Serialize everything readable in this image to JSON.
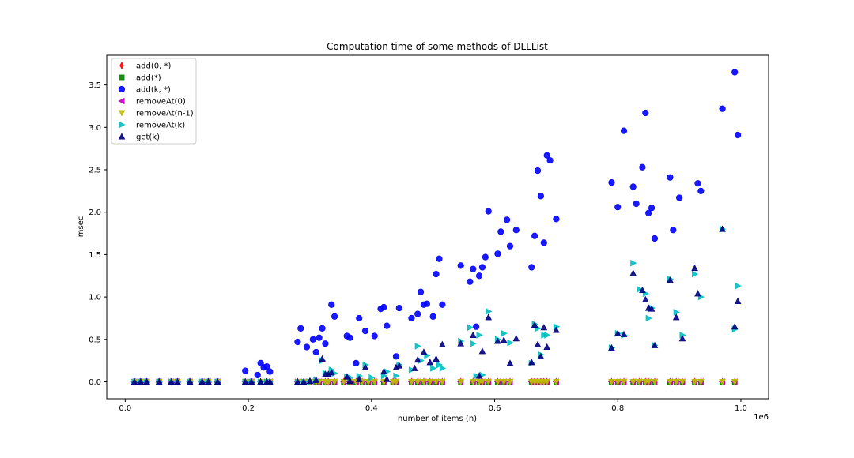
{
  "chart_data": {
    "type": "scatter",
    "title": "Computation time of some methods of DLLList",
    "xlabel": "number of items (n)",
    "ylabel": "msec",
    "x_multiplier_label": "1e6",
    "xlim": [
      -0.03,
      1.045
    ],
    "ylim": [
      -0.2,
      3.85
    ],
    "x_ticks": [
      0.0,
      0.2,
      0.4,
      0.6,
      0.8,
      1.0
    ],
    "x_tick_labels": [
      "0.0",
      "0.2",
      "0.4",
      "0.6",
      "0.8",
      "1.0"
    ],
    "y_ticks": [
      0.0,
      0.5,
      1.0,
      1.5,
      2.0,
      2.5,
      3.0,
      3.5
    ],
    "y_tick_labels": [
      "0.0",
      "0.5",
      "1.0",
      "1.5",
      "2.0",
      "2.5",
      "3.0",
      "3.5"
    ],
    "grid": false,
    "legend_position": "top-left",
    "series": [
      {
        "name": "add(0, *)",
        "marker": "diamond",
        "color": "#ff0000",
        "x": [
          0.015,
          0.025,
          0.035,
          0.055,
          0.075,
          0.085,
          0.105,
          0.125,
          0.135,
          0.15,
          0.195,
          0.205,
          0.22,
          0.23,
          0.235,
          0.28,
          0.29,
          0.3,
          0.31,
          0.315,
          0.325,
          0.33,
          0.34,
          0.355,
          0.365,
          0.375,
          0.385,
          0.395,
          0.405,
          0.42,
          0.435,
          0.44,
          0.465,
          0.475,
          0.485,
          0.495,
          0.505,
          0.515,
          0.545,
          0.565,
          0.575,
          0.58,
          0.59,
          0.605,
          0.615,
          0.625,
          0.66,
          0.665,
          0.67,
          0.675,
          0.68,
          0.685,
          0.7,
          0.79,
          0.8,
          0.81,
          0.825,
          0.835,
          0.845,
          0.85,
          0.86,
          0.885,
          0.895,
          0.905,
          0.925,
          0.935,
          0.97,
          0.99
        ],
        "y": [
          0,
          0,
          0,
          0,
          0,
          0,
          0,
          0,
          0,
          0,
          0,
          0,
          0,
          0,
          0,
          0,
          0,
          0,
          0,
          0,
          0,
          0,
          0,
          0,
          0,
          0,
          0,
          0,
          0,
          0,
          0,
          0,
          0,
          0,
          0,
          0,
          0,
          0,
          0,
          0,
          0,
          0,
          0,
          0,
          0,
          0,
          0,
          0,
          0,
          0,
          0,
          0,
          0,
          0,
          0,
          0,
          0,
          0,
          0,
          0,
          0,
          0,
          0,
          0,
          0,
          0,
          0,
          0
        ]
      },
      {
        "name": "add(*)",
        "marker": "square",
        "color": "#008000",
        "x": [
          0.015,
          0.025,
          0.035,
          0.055,
          0.075,
          0.085,
          0.105,
          0.125,
          0.135,
          0.15,
          0.195,
          0.205,
          0.22,
          0.23,
          0.235,
          0.28,
          0.29,
          0.3,
          0.31,
          0.315,
          0.325,
          0.33,
          0.34,
          0.355,
          0.365,
          0.375,
          0.385,
          0.395,
          0.405,
          0.42,
          0.435,
          0.44,
          0.465,
          0.475,
          0.485,
          0.495,
          0.505,
          0.515,
          0.545,
          0.565,
          0.575,
          0.58,
          0.59,
          0.605,
          0.615,
          0.625,
          0.66,
          0.665,
          0.67,
          0.675,
          0.68,
          0.685,
          0.7,
          0.79,
          0.8,
          0.81,
          0.825,
          0.835,
          0.845,
          0.85,
          0.86,
          0.885,
          0.895,
          0.905,
          0.925,
          0.935,
          0.97,
          0.99
        ],
        "y": [
          0,
          0,
          0,
          0,
          0,
          0,
          0,
          0,
          0,
          0,
          0,
          0,
          0,
          0,
          0,
          0,
          0,
          0,
          0,
          0,
          0,
          0,
          0,
          0,
          0,
          0,
          0,
          0,
          0,
          0,
          0,
          0,
          0,
          0,
          0,
          0,
          0,
          0,
          0,
          0,
          0,
          0,
          0,
          0,
          0,
          0,
          0,
          0,
          0,
          0,
          0,
          0,
          0,
          0,
          0,
          0,
          0,
          0,
          0,
          0,
          0,
          0,
          0,
          0,
          0,
          0,
          0,
          0
        ]
      },
      {
        "name": "add(k, *)",
        "marker": "circle",
        "color": "#0000ff",
        "x": [
          0.015,
          0.025,
          0.035,
          0.055,
          0.075,
          0.085,
          0.105,
          0.125,
          0.135,
          0.15,
          0.195,
          0.205,
          0.215,
          0.22,
          0.225,
          0.23,
          0.235,
          0.28,
          0.285,
          0.295,
          0.305,
          0.31,
          0.315,
          0.32,
          0.325,
          0.335,
          0.34,
          0.36,
          0.365,
          0.375,
          0.38,
          0.39,
          0.405,
          0.415,
          0.42,
          0.425,
          0.44,
          0.445,
          0.465,
          0.475,
          0.48,
          0.485,
          0.49,
          0.5,
          0.505,
          0.51,
          0.515,
          0.545,
          0.56,
          0.565,
          0.57,
          0.575,
          0.58,
          0.585,
          0.59,
          0.605,
          0.61,
          0.62,
          0.625,
          0.635,
          0.66,
          0.665,
          0.67,
          0.675,
          0.68,
          0.685,
          0.69,
          0.7,
          0.79,
          0.8,
          0.81,
          0.825,
          0.83,
          0.84,
          0.845,
          0.85,
          0.855,
          0.86,
          0.885,
          0.89,
          0.9,
          0.93,
          0.935,
          0.97,
          0.99,
          0.995
        ],
        "y": [
          0,
          0,
          0,
          0,
          0,
          0,
          0,
          0,
          0,
          0,
          0.13,
          0.0,
          0.08,
          0.22,
          0.17,
          0.18,
          0.12,
          0.47,
          0.63,
          0.41,
          0.5,
          0.35,
          0.52,
          0.63,
          0.45,
          0.91,
          0.77,
          0.54,
          0.52,
          0.22,
          0.75,
          0.6,
          0.54,
          0.86,
          0.88,
          0.66,
          0.3,
          0.87,
          0.75,
          0.8,
          1.06,
          0.91,
          0.92,
          0.77,
          1.27,
          1.45,
          0.91,
          1.37,
          1.18,
          1.33,
          0.65,
          1.25,
          1.35,
          1.47,
          2.01,
          1.51,
          1.77,
          1.91,
          1.6,
          1.79,
          1.35,
          1.72,
          2.49,
          2.19,
          1.64,
          2.67,
          2.61,
          1.92,
          2.35,
          2.06,
          2.96,
          2.3,
          2.1,
          2.53,
          3.17,
          1.99,
          2.05,
          1.69,
          2.41,
          1.79,
          2.17,
          2.34,
          2.25,
          3.22,
          3.65,
          2.91
        ]
      },
      {
        "name": "removeAt(0)",
        "marker": "triangle-left",
        "color": "#bf00bf",
        "x": [
          0.015,
          0.025,
          0.035,
          0.055,
          0.075,
          0.085,
          0.105,
          0.125,
          0.135,
          0.15,
          0.195,
          0.205,
          0.22,
          0.23,
          0.235,
          0.28,
          0.29,
          0.3,
          0.31,
          0.315,
          0.325,
          0.33,
          0.34,
          0.355,
          0.365,
          0.375,
          0.385,
          0.395,
          0.405,
          0.42,
          0.435,
          0.44,
          0.465,
          0.475,
          0.485,
          0.495,
          0.505,
          0.515,
          0.545,
          0.565,
          0.575,
          0.58,
          0.59,
          0.605,
          0.615,
          0.625,
          0.66,
          0.665,
          0.67,
          0.675,
          0.68,
          0.685,
          0.7,
          0.79,
          0.8,
          0.81,
          0.825,
          0.835,
          0.845,
          0.85,
          0.86,
          0.885,
          0.895,
          0.905,
          0.925,
          0.935,
          0.97,
          0.99
        ],
        "y": [
          0,
          0,
          0,
          0,
          0,
          0,
          0,
          0,
          0,
          0,
          0,
          0,
          0,
          0,
          0,
          0,
          0,
          0,
          0,
          0,
          0,
          0,
          0,
          0,
          0,
          0,
          0,
          0,
          0,
          0,
          0,
          0,
          0,
          0,
          0,
          0,
          0,
          0,
          0,
          0,
          0,
          0,
          0,
          0,
          0,
          0,
          0,
          0,
          0,
          0,
          0,
          0,
          0,
          0,
          0,
          0,
          0,
          0,
          0,
          0,
          0,
          0,
          0,
          0,
          0,
          0,
          0,
          0
        ]
      },
      {
        "name": "removeAt(n-1)",
        "marker": "triangle-down",
        "color": "#bfbf00",
        "x": [
          0.015,
          0.025,
          0.035,
          0.055,
          0.075,
          0.085,
          0.105,
          0.125,
          0.135,
          0.15,
          0.195,
          0.205,
          0.22,
          0.23,
          0.235,
          0.28,
          0.29,
          0.3,
          0.31,
          0.315,
          0.325,
          0.33,
          0.34,
          0.355,
          0.365,
          0.375,
          0.385,
          0.395,
          0.405,
          0.42,
          0.435,
          0.44,
          0.465,
          0.475,
          0.485,
          0.495,
          0.505,
          0.515,
          0.545,
          0.565,
          0.575,
          0.58,
          0.59,
          0.605,
          0.615,
          0.625,
          0.66,
          0.665,
          0.67,
          0.675,
          0.68,
          0.685,
          0.7,
          0.79,
          0.8,
          0.81,
          0.825,
          0.835,
          0.845,
          0.85,
          0.86,
          0.885,
          0.895,
          0.905,
          0.925,
          0.935,
          0.97,
          0.99
        ],
        "y": [
          0,
          0,
          0,
          0,
          0,
          0,
          0,
          0,
          0,
          0,
          0,
          0,
          0,
          0,
          0,
          0,
          0,
          0,
          0,
          0,
          0,
          0,
          0,
          0,
          0,
          0,
          0,
          0,
          0,
          0,
          0,
          0,
          0,
          0,
          0,
          0,
          0,
          0,
          0,
          0,
          0,
          0,
          0,
          0,
          0,
          0,
          0,
          0,
          0,
          0,
          0,
          0,
          0,
          0,
          0,
          0,
          0,
          0,
          0,
          0,
          0,
          0,
          0,
          0,
          0,
          0,
          0,
          0
        ]
      },
      {
        "name": "removeAt(k)",
        "marker": "triangle-right",
        "color": "#00bfbf",
        "x": [
          0.015,
          0.025,
          0.035,
          0.055,
          0.075,
          0.085,
          0.105,
          0.125,
          0.135,
          0.15,
          0.195,
          0.205,
          0.22,
          0.23,
          0.235,
          0.28,
          0.29,
          0.3,
          0.31,
          0.32,
          0.325,
          0.335,
          0.34,
          0.36,
          0.365,
          0.38,
          0.39,
          0.4,
          0.42,
          0.425,
          0.44,
          0.445,
          0.465,
          0.475,
          0.48,
          0.49,
          0.5,
          0.51,
          0.515,
          0.545,
          0.56,
          0.565,
          0.57,
          0.575,
          0.58,
          0.59,
          0.605,
          0.615,
          0.625,
          0.66,
          0.665,
          0.67,
          0.675,
          0.68,
          0.685,
          0.7,
          0.79,
          0.8,
          0.81,
          0.825,
          0.835,
          0.845,
          0.85,
          0.855,
          0.86,
          0.885,
          0.895,
          0.905,
          0.925,
          0.935,
          0.97,
          0.99,
          0.995
        ],
        "y": [
          0,
          0,
          0,
          0,
          0,
          0,
          0,
          0,
          0,
          0,
          0,
          0,
          0,
          0,
          0,
          0,
          0,
          0.0,
          0.02,
          0.25,
          0.1,
          0.14,
          0.1,
          0.06,
          0.05,
          0.07,
          0.2,
          0.05,
          0.07,
          0.12,
          0.07,
          0.2,
          0.14,
          0.42,
          0.25,
          0.31,
          0.16,
          0.2,
          0.16,
          0.48,
          0.64,
          0.45,
          0.07,
          0.55,
          0.08,
          0.83,
          0.5,
          0.57,
          0.46,
          0.22,
          0.68,
          0.63,
          0.32,
          0.55,
          0.55,
          0.65,
          0.4,
          0.57,
          0.55,
          1.4,
          1.09,
          1.04,
          0.75,
          0.87,
          0.43,
          1.21,
          0.82,
          0.55,
          1.27,
          1.0,
          1.8,
          0.62,
          1.13
        ]
      },
      {
        "name": "get(k)",
        "marker": "triangle-up",
        "color": "#00007f",
        "x": [
          0.015,
          0.025,
          0.035,
          0.055,
          0.075,
          0.085,
          0.105,
          0.125,
          0.135,
          0.15,
          0.195,
          0.205,
          0.22,
          0.23,
          0.235,
          0.28,
          0.29,
          0.3,
          0.31,
          0.32,
          0.325,
          0.33,
          0.335,
          0.36,
          0.365,
          0.38,
          0.39,
          0.42,
          0.425,
          0.44,
          0.445,
          0.47,
          0.475,
          0.485,
          0.495,
          0.505,
          0.515,
          0.545,
          0.565,
          0.575,
          0.58,
          0.59,
          0.605,
          0.615,
          0.625,
          0.635,
          0.66,
          0.665,
          0.67,
          0.675,
          0.68,
          0.685,
          0.7,
          0.79,
          0.8,
          0.81,
          0.825,
          0.84,
          0.845,
          0.85,
          0.855,
          0.86,
          0.885,
          0.895,
          0.905,
          0.925,
          0.93,
          0.97,
          0.99,
          0.995
        ],
        "y": [
          0,
          0,
          0,
          0,
          0,
          0,
          0,
          0,
          0,
          0,
          0,
          0,
          0,
          0,
          0,
          0,
          0,
          0.01,
          0.02,
          0.27,
          0.09,
          0.09,
          0.11,
          0.06,
          0.01,
          0.03,
          0.17,
          0.12,
          0.03,
          0.17,
          0.19,
          0.16,
          0.26,
          0.35,
          0.23,
          0.27,
          0.44,
          0.45,
          0.55,
          0.07,
          0.36,
          0.76,
          0.48,
          0.49,
          0.22,
          0.51,
          0.23,
          0.67,
          0.44,
          0.3,
          0.64,
          0.41,
          0.61,
          0.4,
          0.57,
          0.56,
          1.28,
          1.08,
          0.97,
          0.87,
          0.86,
          0.43,
          1.2,
          0.76,
          0.51,
          1.34,
          1.04,
          1.8,
          0.65,
          0.95
        ]
      }
    ]
  }
}
